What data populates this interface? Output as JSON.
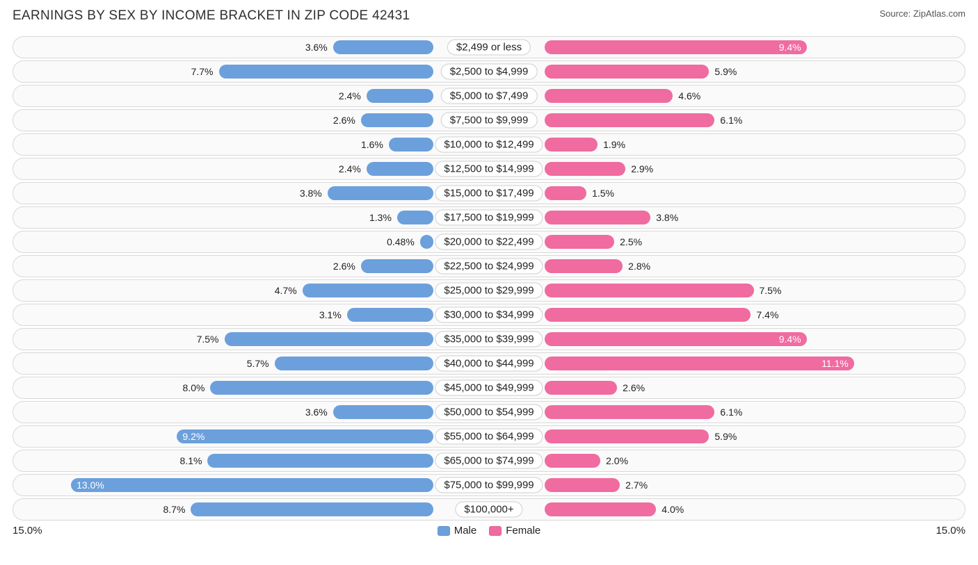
{
  "title": "EARNINGS BY SEX BY INCOME BRACKET IN ZIP CODE 42431",
  "source": "Source: ZipAtlas.com",
  "axis_max": 15.0,
  "axis_left_label": "15.0%",
  "axis_right_label": "15.0%",
  "legend": {
    "male": "Male",
    "female": "Female"
  },
  "colors": {
    "male": "#6ca0dc",
    "female": "#f06ba0",
    "row_bg": "#fafafa",
    "row_border": "#d8d8d8",
    "text": "#222222",
    "title": "#303030"
  },
  "brackets": [
    {
      "label": "$2,499 or less",
      "male": 3.6,
      "male_txt": "3.6%",
      "female": 9.4,
      "female_txt": "9.4%",
      "female_inside": true
    },
    {
      "label": "$2,500 to $4,999",
      "male": 7.7,
      "male_txt": "7.7%",
      "female": 5.9,
      "female_txt": "5.9%"
    },
    {
      "label": "$5,000 to $7,499",
      "male": 2.4,
      "male_txt": "2.4%",
      "female": 4.6,
      "female_txt": "4.6%"
    },
    {
      "label": "$7,500 to $9,999",
      "male": 2.6,
      "male_txt": "2.6%",
      "female": 6.1,
      "female_txt": "6.1%"
    },
    {
      "label": "$10,000 to $12,499",
      "male": 1.6,
      "male_txt": "1.6%",
      "female": 1.9,
      "female_txt": "1.9%"
    },
    {
      "label": "$12,500 to $14,999",
      "male": 2.4,
      "male_txt": "2.4%",
      "female": 2.9,
      "female_txt": "2.9%"
    },
    {
      "label": "$15,000 to $17,499",
      "male": 3.8,
      "male_txt": "3.8%",
      "female": 1.5,
      "female_txt": "1.5%"
    },
    {
      "label": "$17,500 to $19,999",
      "male": 1.3,
      "male_txt": "1.3%",
      "female": 3.8,
      "female_txt": "3.8%"
    },
    {
      "label": "$20,000 to $22,499",
      "male": 0.48,
      "male_txt": "0.48%",
      "female": 2.5,
      "female_txt": "2.5%"
    },
    {
      "label": "$22,500 to $24,999",
      "male": 2.6,
      "male_txt": "2.6%",
      "female": 2.8,
      "female_txt": "2.8%"
    },
    {
      "label": "$25,000 to $29,999",
      "male": 4.7,
      "male_txt": "4.7%",
      "female": 7.5,
      "female_txt": "7.5%"
    },
    {
      "label": "$30,000 to $34,999",
      "male": 3.1,
      "male_txt": "3.1%",
      "female": 7.4,
      "female_txt": "7.4%"
    },
    {
      "label": "$35,000 to $39,999",
      "male": 7.5,
      "male_txt": "7.5%",
      "female": 9.4,
      "female_txt": "9.4%",
      "female_inside": true
    },
    {
      "label": "$40,000 to $44,999",
      "male": 5.7,
      "male_txt": "5.7%",
      "female": 11.1,
      "female_txt": "11.1%",
      "female_inside": true
    },
    {
      "label": "$45,000 to $49,999",
      "male": 8.0,
      "male_txt": "8.0%",
      "female": 2.6,
      "female_txt": "2.6%"
    },
    {
      "label": "$50,000 to $54,999",
      "male": 3.6,
      "male_txt": "3.6%",
      "female": 6.1,
      "female_txt": "6.1%"
    },
    {
      "label": "$55,000 to $64,999",
      "male": 9.2,
      "male_txt": "9.2%",
      "male_inside": true,
      "female": 5.9,
      "female_txt": "5.9%"
    },
    {
      "label": "$65,000 to $74,999",
      "male": 8.1,
      "male_txt": "8.1%",
      "female": 2.0,
      "female_txt": "2.0%"
    },
    {
      "label": "$75,000 to $99,999",
      "male": 13.0,
      "male_txt": "13.0%",
      "male_inside": true,
      "female": 2.7,
      "female_txt": "2.7%"
    },
    {
      "label": "$100,000+",
      "male": 8.7,
      "male_txt": "8.7%",
      "female": 4.0,
      "female_txt": "4.0%"
    }
  ]
}
